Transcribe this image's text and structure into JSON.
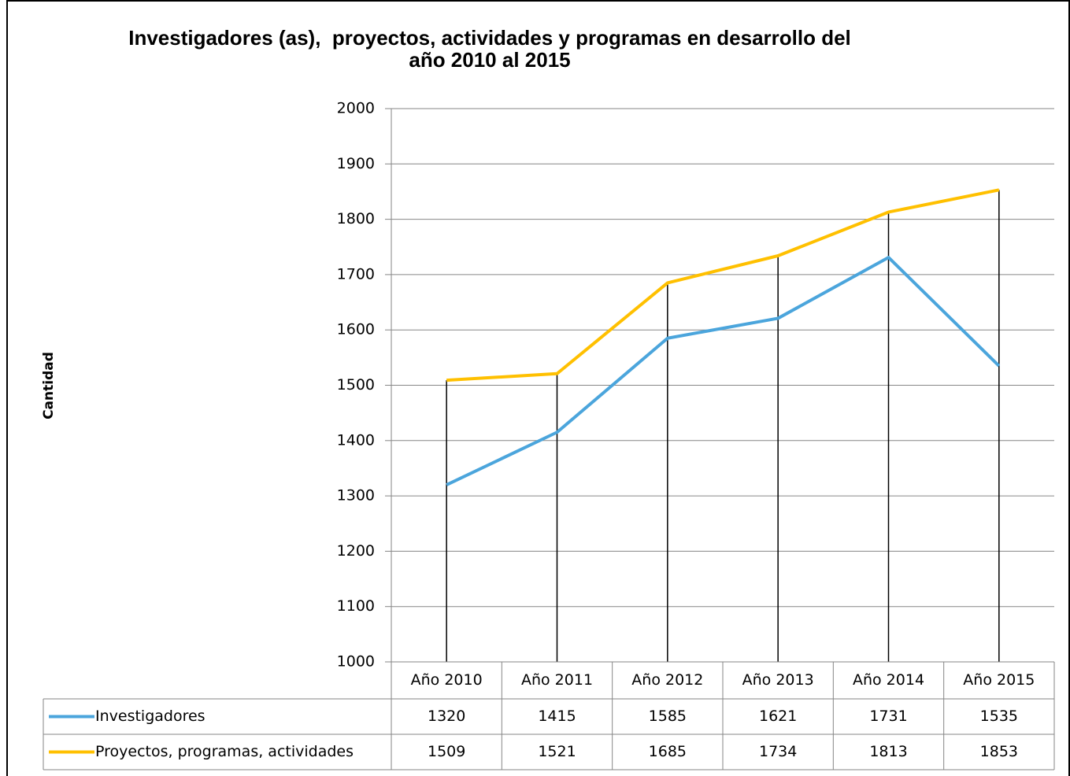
{
  "chart_data": {
    "type": "line",
    "title": "Investigadores (as),  proyectos, actividades y programas en desarrollo del año 2010 al 2015",
    "y_label": "Cantidad",
    "categories": [
      "Año 2010",
      "Año 2011",
      "Año 2012",
      "Año 2013",
      "Año 2014",
      "Año 2015"
    ],
    "series": [
      {
        "name": "Investigadores",
        "color": "#4ba5dc",
        "values": [
          1320,
          1415,
          1585,
          1621,
          1731,
          1535
        ]
      },
      {
        "name": "Proyectos, programas, actividades",
        "color": "#ffc000",
        "values": [
          1509,
          1521,
          1685,
          1734,
          1813,
          1853
        ]
      }
    ],
    "ylim": [
      1000,
      2000
    ],
    "yticks": [
      1000,
      1100,
      1200,
      1300,
      1400,
      1500,
      1600,
      1700,
      1800,
      1900,
      2000
    ],
    "grid": true,
    "data_table": true,
    "drop_lines": true
  }
}
